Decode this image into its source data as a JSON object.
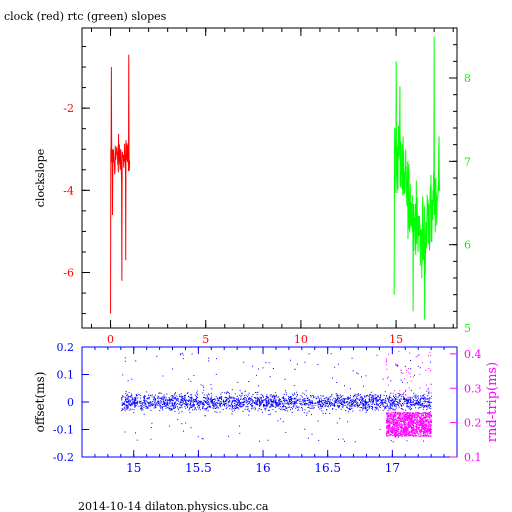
{
  "title": "clock (red) rtc (green) slopes",
  "footer": "2014-10-14 dilaton.physics.ubc.ca",
  "colors": {
    "clock": "#ff0000",
    "rtc": "#00ff00",
    "offset": "#0000ff",
    "rndtrip": "#ff00ff",
    "axis": "#000000"
  },
  "chart_data": [
    {
      "type": "line",
      "ylabel": "clockslope",
      "xlim": [
        -1.5,
        18.2
      ],
      "x_ticks": [
        "0",
        "5",
        "10",
        "15"
      ],
      "x_tick_values": [
        0,
        5,
        10,
        15
      ],
      "y_left": {
        "lim": [
          -7.35,
          -0.05
        ],
        "ticks": [
          "-2",
          "-4",
          "-6"
        ],
        "tick_values": [
          -2,
          -4,
          -6
        ],
        "color": "#ff0000"
      },
      "y_right": {
        "lim": [
          5.0,
          8.6
        ],
        "ticks": [
          "5",
          "6",
          "7",
          "8"
        ],
        "tick_values": [
          5,
          6,
          7,
          8
        ],
        "color": "#00ff00"
      },
      "grid": false,
      "series": [
        {
          "name": "clock (red)",
          "axis": "left",
          "x_range": [
            0.0,
            1.0
          ],
          "values_center": -3.2,
          "values_spread": 0.5,
          "spikes": [
            [
              0.0,
              -7.0
            ],
            [
              0.05,
              -1.0
            ],
            [
              0.1,
              -4.6
            ],
            [
              0.6,
              -6.2
            ],
            [
              0.8,
              -5.7
            ],
            [
              0.95,
              -0.7
            ]
          ]
        },
        {
          "name": "rtc (green)",
          "axis": "right",
          "x_range": [
            14.9,
            17.3
          ],
          "values_center": 6.6,
          "values_spread": 0.55,
          "spikes": [
            [
              14.9,
              5.4
            ],
            [
              15.0,
              8.2
            ],
            [
              15.2,
              7.9
            ],
            [
              15.9,
              5.2
            ],
            [
              16.5,
              5.1
            ],
            [
              17.0,
              8.5
            ],
            [
              17.25,
              7.3
            ]
          ]
        }
      ]
    },
    {
      "type": "scatter",
      "ylabel": "offset(ms)",
      "y2label": "rnd-trip(ms)",
      "xlim": [
        14.6,
        17.5
      ],
      "x_ticks": [
        "15",
        "15.5",
        "16",
        "16.5",
        "17"
      ],
      "x_tick_values": [
        15,
        15.5,
        16,
        16.5,
        17
      ],
      "y_left": {
        "lim": [
          -0.2,
          0.2
        ],
        "ticks": [
          "0.2",
          "0.1",
          "0",
          "-0.1",
          "-0.2"
        ],
        "tick_values": [
          0.2,
          0.1,
          0,
          -0.1,
          -0.2
        ],
        "color": "#0000ff"
      },
      "y_right": {
        "lim": [
          0.1,
          0.42
        ],
        "ticks": [
          "0.4",
          "0.3",
          "0.2",
          "0.1"
        ],
        "tick_values": [
          0.4,
          0.3,
          0.2,
          0.1
        ],
        "color": "#ff00ff"
      },
      "grid": false,
      "series": [
        {
          "name": "offset(ms)",
          "axis": "left",
          "x_range": [
            14.9,
            17.3
          ],
          "values_center": 0.0,
          "values_spread": 0.03,
          "outlier_range": [
            -0.15,
            0.18
          ]
        },
        {
          "name": "rnd-trip(ms)",
          "axis": "right",
          "x_range": [
            16.95,
            17.3
          ],
          "values_range": [
            0.16,
            0.23
          ],
          "outlier_range": [
            0.23,
            0.41
          ]
        }
      ]
    }
  ]
}
